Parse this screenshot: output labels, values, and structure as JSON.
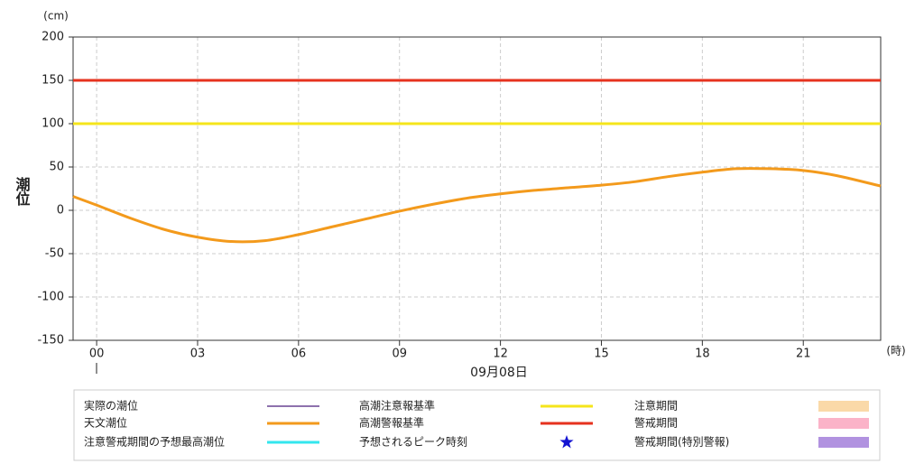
{
  "chart_data": {
    "type": "line",
    "y_unit": "(cm)",
    "y_label": "潮位",
    "x_unit": "(時)",
    "date_label": "09月08日",
    "xlim": [
      -0.7,
      23.3
    ],
    "ylim": [
      -150,
      200
    ],
    "yticks": [
      -150,
      -100,
      -50,
      0,
      50,
      100,
      150,
      200
    ],
    "xticks": [
      {
        "value": 0,
        "label": "00"
      },
      {
        "value": 3,
        "label": "03"
      },
      {
        "value": 6,
        "label": "06"
      },
      {
        "value": 9,
        "label": "09"
      },
      12,
      15,
      18,
      21
    ],
    "grid": true,
    "series": [
      {
        "name": "天文潮位",
        "color": "#f39a1c",
        "x": [
          -0.7,
          0,
          1,
          2,
          3,
          4,
          5,
          6,
          7,
          8,
          9,
          10,
          11,
          12,
          13,
          14,
          15,
          16,
          17,
          18,
          19,
          20,
          21,
          22,
          23.3
        ],
        "values": [
          16,
          6,
          -9,
          -22,
          -31,
          -36,
          -35,
          -28,
          -19,
          -10,
          -1,
          7,
          14,
          19,
          23,
          26,
          29,
          33,
          39,
          44,
          48,
          48,
          46,
          40,
          28
        ]
      }
    ],
    "thresholds": [
      {
        "name": "高潮注意報基準",
        "color": "#f5e51b",
        "value": 100
      },
      {
        "name": "高潮警報基準",
        "color": "#e6321e",
        "value": 150
      }
    ],
    "legend_extra": [
      {
        "name": "実際の潮位",
        "color": "#4b1c7c",
        "symbol": "thin-line"
      },
      {
        "name": "注意警戒期間の予想最高潮位",
        "color": "#33e6ee",
        "symbol": "line"
      },
      {
        "name": "予想されるピーク時刻",
        "color": "#1414d2",
        "symbol": "star"
      },
      {
        "name": "注意期間",
        "color": "#fad9a8",
        "symbol": "patch"
      },
      {
        "name": "警戒期間",
        "color": "#fbb3c8",
        "symbol": "patch"
      },
      {
        "name": "警戒期間(特別警報)",
        "color": "#b192e0",
        "symbol": "patch"
      }
    ]
  }
}
